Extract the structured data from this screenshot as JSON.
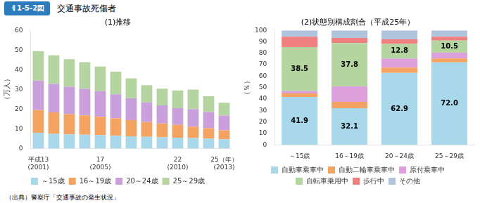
{
  "label": "ㅔ1-5-2図",
  "title": "交通事故死傷者",
  "source": "（出典）警察庁「交通事故の発生状況」",
  "chart_data": [
    {
      "type": "bar",
      "title": "(1)推移",
      "y_label": "（万人）",
      "stacked": true,
      "grid": false,
      "legend": "bottom",
      "categories": [
        [
          "平成13",
          "(2001)"
        ],
        null,
        null,
        null,
        [
          "17",
          "(2005)"
        ],
        null,
        null,
        null,
        null,
        [
          "22",
          "(2010)"
        ],
        null,
        null,
        [
          "25（年）",
          "(2013)"
        ]
      ],
      "ylim": [
        0,
        60
      ],
      "yticks": [
        0,
        10,
        20,
        30,
        40,
        50,
        60
      ],
      "series": [
        {
          "name": "～15歳",
          "color": "#A8D8EA",
          "values": [
            8.0,
            7.5,
            7.2,
            7.0,
            6.8,
            6.5,
            6.2,
            5.9,
            5.7,
            5.5,
            5.3,
            5.0,
            4.7
          ]
        },
        {
          "name": "16～19歳",
          "color": "#F4A460",
          "values": [
            11.5,
            10.8,
            10.2,
            9.8,
            9.3,
            8.8,
            8.2,
            7.5,
            7.0,
            6.5,
            5.8,
            5.3,
            4.5
          ]
        },
        {
          "name": "20～24歳",
          "color": "#C9A0DC",
          "values": [
            15.0,
            14.5,
            14.0,
            13.5,
            13.0,
            12.2,
            11.2,
            10.0,
            9.2,
            8.5,
            8.8,
            8.2,
            7.5
          ]
        },
        {
          "name": "25～29歳",
          "color": "#B5D5A0",
          "values": [
            15.0,
            14.5,
            14.0,
            13.5,
            12.5,
            11.5,
            10.0,
            8.8,
            8.5,
            9.0,
            10.0,
            8.0,
            6.5
          ]
        }
      ]
    },
    {
      "type": "bar",
      "title": "(2)状態別構成割合（平成25年）",
      "y_label": "（％）",
      "stacked": true,
      "grid": false,
      "legend": "bottom",
      "categories": [
        "～15歳",
        "16～19歳",
        "20～24歳",
        "25～29歳"
      ],
      "ylim": [
        0,
        100
      ],
      "yticks": [
        0,
        10,
        20,
        30,
        40,
        50,
        60,
        70,
        80,
        90,
        100
      ],
      "series": [
        {
          "name": "自動車乗車中",
          "color": "#A8D8EA",
          "values": [
            41.9,
            32.1,
            62.9,
            72.0
          ],
          "data_labels": true,
          "value_labels": [
            "41.9",
            "32.1",
            "62.9",
            "72.0"
          ]
        },
        {
          "name": "自動二輪車乗車中",
          "color": "#F4A460",
          "values": [
            3.0,
            5.5,
            4.5,
            3.5
          ]
        },
        {
          "name": "原付乗車中",
          "color": "#DDA0DD",
          "values": [
            2.0,
            13.5,
            8.0,
            5.0
          ]
        },
        {
          "name": "自転車乗用中",
          "color": "#B5D5A0",
          "values": [
            38.5,
            37.8,
            12.8,
            10.5
          ],
          "data_labels": true,
          "value_labels": [
            "38.5",
            "37.8",
            "12.8",
            "10.5"
          ]
        },
        {
          "name": "歩行中",
          "color": "#F08080",
          "values": [
            9.0,
            4.5,
            4.0,
            3.5
          ]
        },
        {
          "name": "その他",
          "color": "#B0C4DE",
          "values": [
            5.6,
            6.6,
            7.8,
            5.5
          ]
        }
      ]
    }
  ]
}
